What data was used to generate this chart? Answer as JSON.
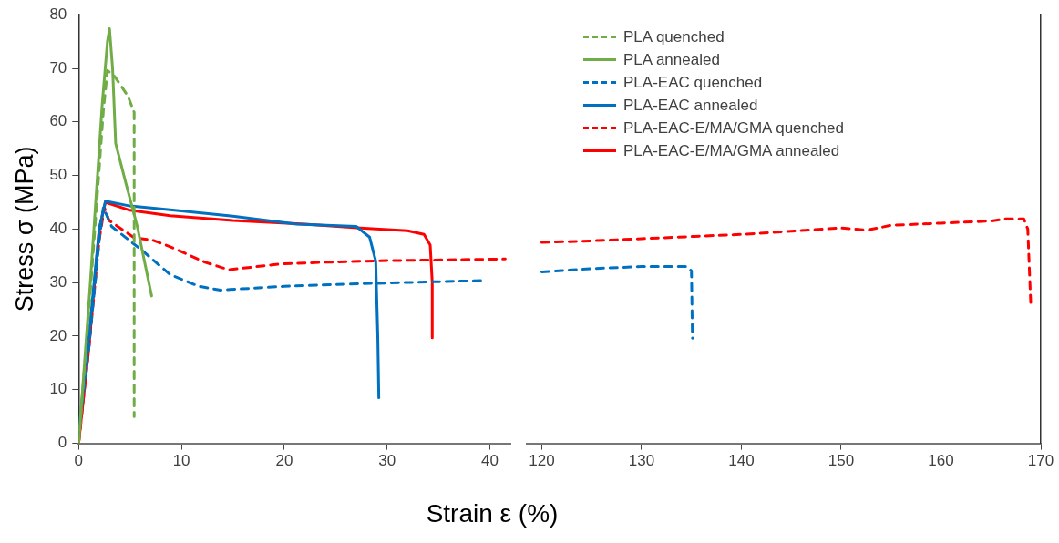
{
  "chart_data": [
    {
      "type": "line",
      "ylabel": "Stress σ (MPa)",
      "xlabel": "Strain ε (%)",
      "xlim": [
        0,
        42
      ],
      "xticks": [
        0,
        10,
        20,
        30,
        40
      ],
      "ylim": [
        0,
        80
      ],
      "yticks": [
        0,
        10,
        20,
        30,
        40,
        50,
        60,
        70,
        80
      ],
      "grid": false,
      "legend": "top right",
      "marker": "none",
      "series": [
        {
          "name": "PLA quenched",
          "color": "#70ad47",
          "line_style": "dashed",
          "x": [
            0,
            1.2,
            2.4,
            2.8,
            3.5,
            4.8,
            5.4,
            5.4
          ],
          "values": [
            0,
            30,
            62,
            69.6,
            68.5,
            64.8,
            61.8,
            5
          ]
        },
        {
          "name": "PLA annealed",
          "color": "#70ad47",
          "line_style": "solid",
          "x": [
            0,
            1.1,
            2.3,
            2.8,
            3.0,
            3.3,
            3.6,
            4.6,
            5.7,
            7.1
          ],
          "values": [
            0,
            29,
            63.5,
            75,
            77.4,
            70,
            56,
            48.5,
            40.5,
            27.5
          ]
        },
        {
          "name": "PLA-EAC quenched",
          "color": "#0070c0",
          "line_style": "dashed",
          "x": [
            0,
            1,
            2,
            2.4,
            3.2,
            6.3,
            8.9,
            11.7,
            13.8,
            20,
            27.4,
            39.6
          ],
          "values": [
            2,
            18,
            38,
            44,
            40.5,
            35.8,
            31.5,
            29.3,
            28.6,
            29.3,
            29.8,
            30.4
          ]
        },
        {
          "name": "PLA-EAC annealed",
          "color": "#0070c0",
          "line_style": "solid",
          "x": [
            0,
            1,
            2,
            2.6,
            5,
            8.9,
            15,
            21.2,
            27,
            28.3,
            28.9,
            29.1,
            29.2
          ],
          "values": [
            2,
            20,
            40,
            45.2,
            44.3,
            43.6,
            42.4,
            40.9,
            40.5,
            38.5,
            34,
            20,
            8.5
          ]
        },
        {
          "name": "PLA-EAC-E/MA/GMA quenched",
          "color": "#ff0000",
          "line_style": "dashed",
          "x": [
            0,
            1,
            2,
            2.5,
            2.95,
            5.4,
            7.25,
            8.9,
            12.3,
            14.6,
            19.7,
            24,
            30,
            41.5
          ],
          "values": [
            0,
            18,
            38,
            44,
            41.6,
            38.4,
            37.9,
            36.7,
            33.8,
            32.4,
            33.5,
            33.8,
            34.1,
            34.4
          ]
        },
        {
          "name": "PLA-EAC-E/MA/GMA annealed",
          "color": "#ff0000",
          "line_style": "solid",
          "x": [
            0,
            1,
            2,
            2.6,
            5,
            8.9,
            15,
            22,
            27.4,
            32,
            33.6,
            34.2,
            34.4,
            34.4
          ],
          "values": [
            0,
            18,
            40,
            45,
            43.5,
            42.5,
            41.6,
            40.9,
            40.2,
            39.7,
            39,
            37,
            30,
            19.7
          ]
        }
      ]
    },
    {
      "type": "line",
      "xlim": [
        118.5,
        170
      ],
      "xticks": [
        120,
        130,
        140,
        150,
        160,
        170
      ],
      "ylim": [
        0,
        80
      ],
      "grid": false,
      "tick_labels": "x",
      "marker": "none",
      "series": [
        {
          "color": "#0070c0",
          "line_style": "dashed",
          "x": [
            120,
            125,
            130,
            134.5,
            135.0,
            135.1
          ],
          "values": [
            32.0,
            32.6,
            33.0,
            33.0,
            32.2,
            19.6
          ]
        },
        {
          "color": "#ff0000",
          "line_style": "dashed",
          "x": [
            120,
            125,
            130,
            135,
            140,
            145,
            150,
            152.6,
            155,
            160,
            165,
            166.5,
            168.3,
            168.7,
            169
          ],
          "values": [
            37.5,
            37.8,
            38.2,
            38.6,
            39.0,
            39.6,
            40.2,
            39.8,
            40.7,
            41.1,
            41.5,
            41.9,
            41.9,
            40,
            26
          ]
        }
      ]
    }
  ]
}
